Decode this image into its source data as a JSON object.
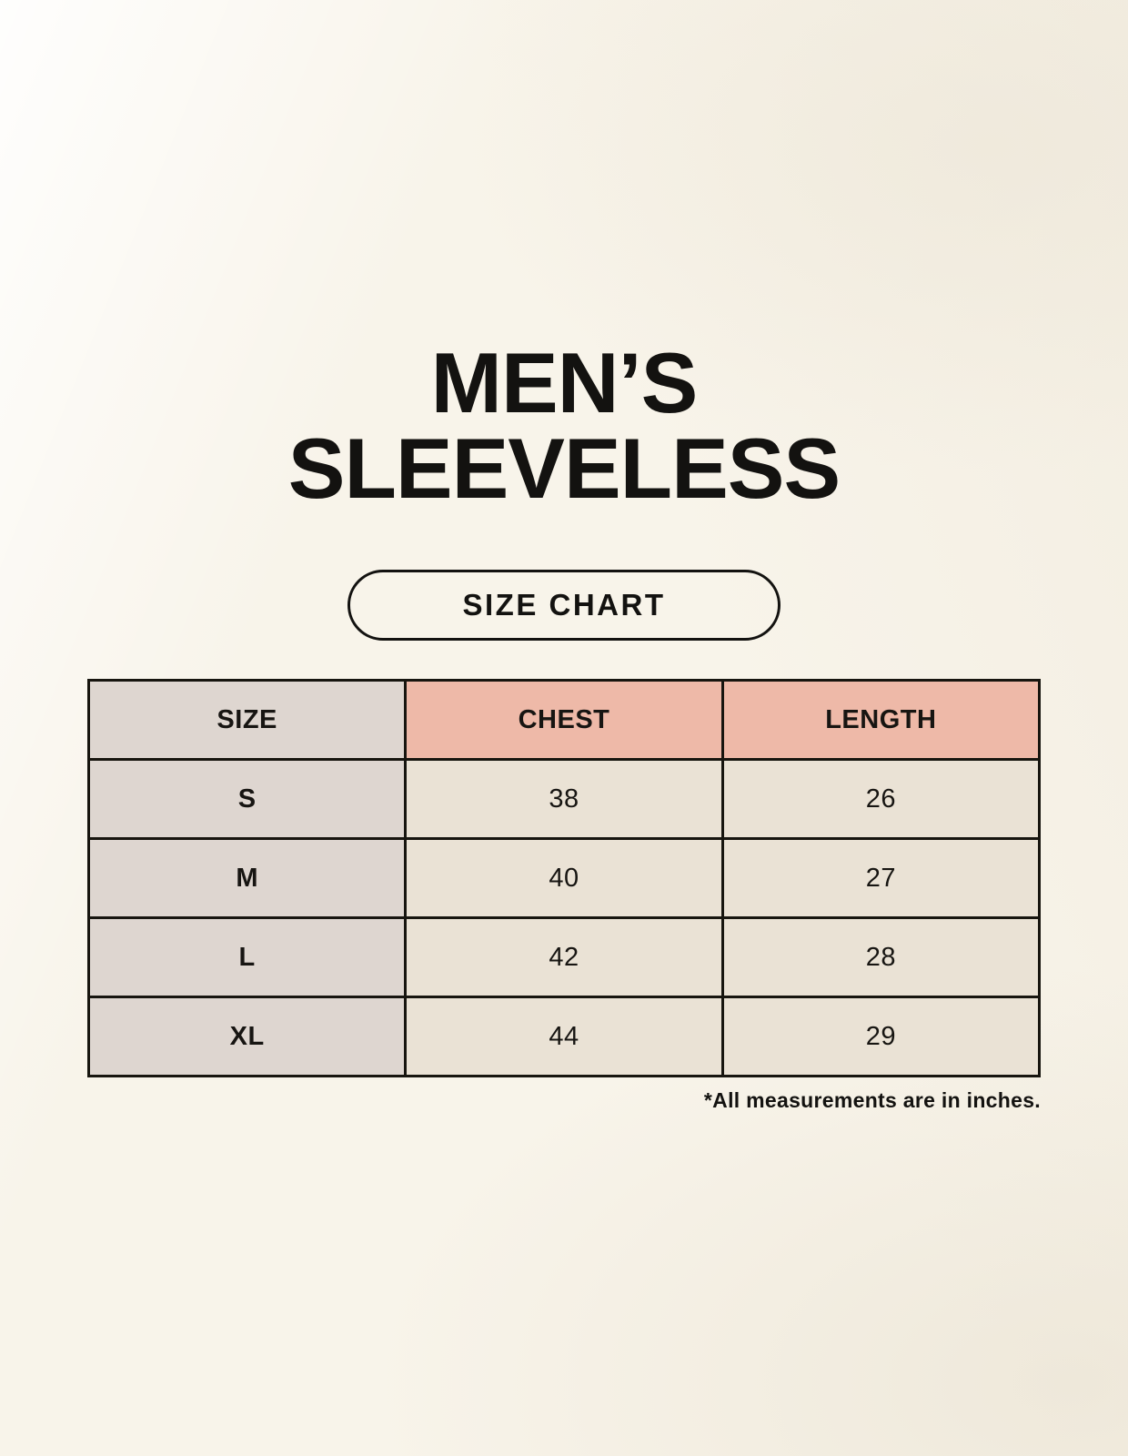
{
  "page": {
    "title_line1": "MEN’S",
    "title_line2": "SLEEVELESS",
    "button_label": "SIZE CHART",
    "footnote": "*All measurements are in inches."
  },
  "colors": {
    "background": "#f8f4ea",
    "text": "#131210",
    "table_border": "#17150f",
    "size_column_bg": "#ded6d0",
    "header_accent_bg": "#eeb9a8",
    "data_cell_bg": "#eae2d5"
  },
  "table": {
    "headers": [
      {
        "label": "SIZE"
      },
      {
        "label": "CHEST"
      },
      {
        "label": "LENGTH"
      }
    ],
    "rows": [
      {
        "size": "S",
        "chest": "38",
        "length": "26"
      },
      {
        "size": "M",
        "chest": "40",
        "length": "27"
      },
      {
        "size": "L",
        "chest": "42",
        "length": "28"
      },
      {
        "size": "XL",
        "chest": "44",
        "length": "29"
      }
    ]
  },
  "chart_data": {
    "type": "table",
    "title": "MEN’S SLEEVELESS",
    "subtitle": "SIZE CHART",
    "columns": [
      "SIZE",
      "CHEST",
      "LENGTH"
    ],
    "rows": [
      [
        "S",
        38,
        26
      ],
      [
        "M",
        40,
        27
      ],
      [
        "L",
        42,
        28
      ],
      [
        "XL",
        44,
        29
      ]
    ],
    "units": "inches",
    "annotations": [
      "*All measurements are in inches."
    ]
  }
}
